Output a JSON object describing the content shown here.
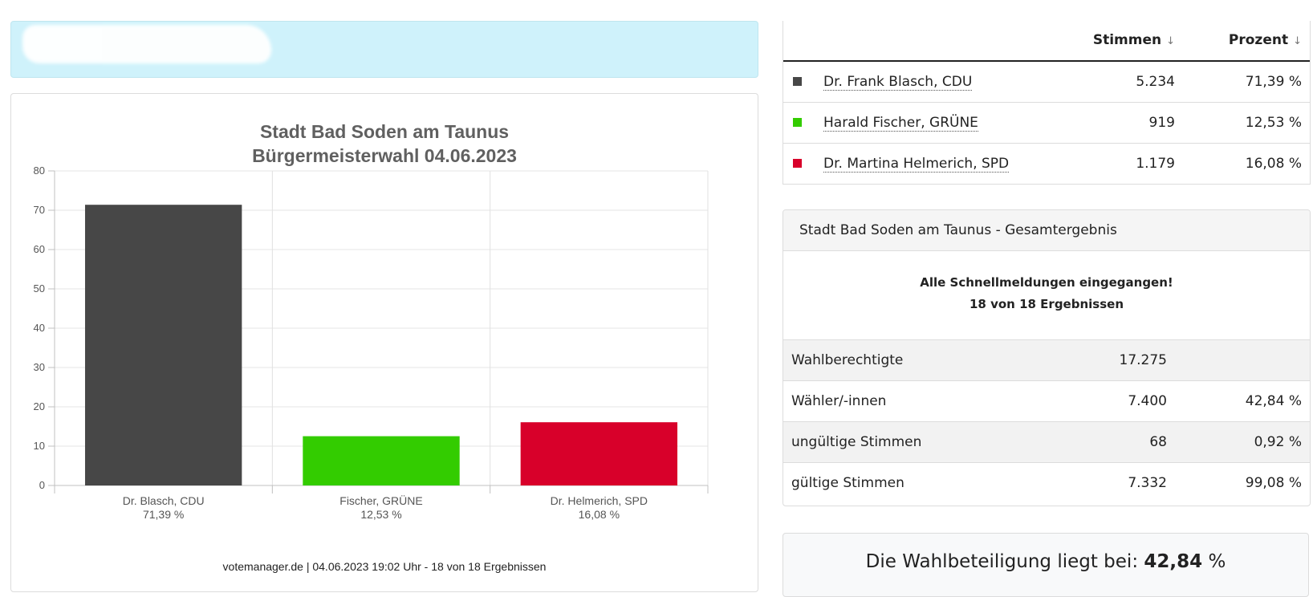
{
  "colors": {
    "cdu": "#474747",
    "gruene": "#33cc00",
    "spd": "#d8002a",
    "banner": "#cff2fb"
  },
  "chart_data": {
    "type": "bar",
    "title_line1": "Stadt Bad Soden am Taunus",
    "title_line2": "Bürgermeisterwahl 04.06.2023",
    "categories": [
      "Dr. Blasch, CDU",
      "Fischer, GRÜNE",
      "Dr. Helmerich, SPD"
    ],
    "category_sublabels": [
      "71,39 %",
      "12,53 %",
      "16,08 %"
    ],
    "values": [
      71.39,
      12.53,
      16.08
    ],
    "colors": [
      "#474747",
      "#33cc00",
      "#d8002a"
    ],
    "ylim": [
      0,
      80
    ],
    "yticks": [
      0,
      10,
      20,
      30,
      40,
      50,
      60,
      70,
      80
    ],
    "grid": true,
    "footer": "votemanager.de | 04.06.2023 19:02 Uhr - 18 von 18 Ergebnissen"
  },
  "candidates": {
    "header_votes": "Stimmen",
    "header_percent": "Prozent",
    "sort_icon": "arrow-down-icon",
    "rows": [
      {
        "name": "Dr. Frank Blasch, CDU",
        "votes": "5.234",
        "percent": "71,39 %",
        "color": "#474747"
      },
      {
        "name": "Harald Fischer, GRÜNE",
        "votes": "919",
        "percent": "12,53 %",
        "color": "#33cc00"
      },
      {
        "name": "Dr. Martina Helmerich, SPD",
        "votes": "1.179",
        "percent": "16,08 %",
        "color": "#d8002a"
      }
    ]
  },
  "result": {
    "header": "Stadt Bad Soden am Taunus - Gesamtergebnis",
    "status_line1": "Alle Schnellmeldungen eingegangen!",
    "status_line2": "18 von 18 Ergebnissen",
    "rows": [
      {
        "label": "Wahlberechtigte",
        "value": "17.275",
        "percent": ""
      },
      {
        "label": "Wähler/-innen",
        "value": "7.400",
        "percent": "42,84 %"
      },
      {
        "label": "ungültige Stimmen",
        "value": "68",
        "percent": "0,92 %"
      },
      {
        "label": "gültige Stimmen",
        "value": "7.332",
        "percent": "99,08 %"
      }
    ]
  },
  "turnout": {
    "label": "Die Wahlbeteiligung liegt bei:",
    "value": "42,84",
    "unit": "%"
  }
}
